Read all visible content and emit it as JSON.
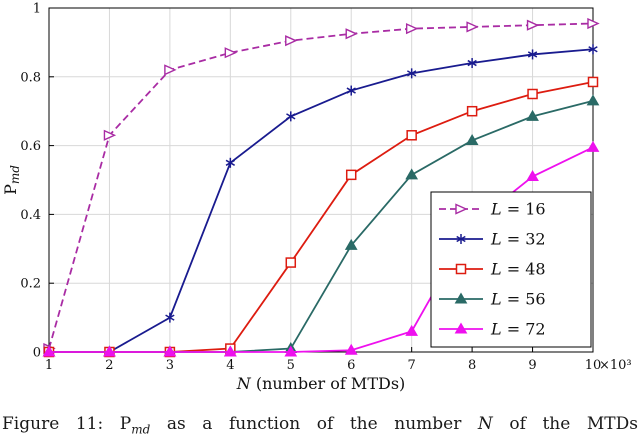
{
  "chart_data": {
    "type": "line",
    "title": "",
    "xlabel_var": "N",
    "xlabel_rest": " (number of MTDs)",
    "ylabel_main": "P",
    "ylabel_sub": "md",
    "x_multiplier": "×10³",
    "xlim": [
      1,
      10
    ],
    "ylim": [
      0,
      1
    ],
    "grid": true,
    "legend_position": "inside-bottom-right",
    "x": [
      1,
      2,
      3,
      4,
      5,
      6,
      7,
      8,
      9,
      10
    ],
    "x_ticks": [
      "1",
      "2",
      "3",
      "4",
      "5",
      "6",
      "7",
      "8",
      "9",
      "10"
    ],
    "y_tick_values": [
      0,
      0.2,
      0.4,
      0.6,
      0.8,
      1
    ],
    "y_ticks": [
      "0",
      "0.2",
      "0.4",
      "0.6",
      "0.8",
      "1"
    ],
    "series": [
      {
        "name": "L = 16",
        "color": "#a92ca4",
        "dash": "dashed",
        "marker": "triangle-right-open",
        "values": [
          0.01,
          0.63,
          0.82,
          0.87,
          0.905,
          0.925,
          0.94,
          0.945,
          0.95,
          0.955
        ]
      },
      {
        "name": "L = 32",
        "color": "#191b8f",
        "dash": "solid",
        "marker": "asterisk",
        "values": [
          0,
          0,
          0.1,
          0.55,
          0.685,
          0.76,
          0.81,
          0.84,
          0.865,
          0.88
        ]
      },
      {
        "name": "L = 48",
        "color": "#dd1c10",
        "dash": "solid",
        "marker": "square-open",
        "values": [
          0,
          0,
          0,
          0.01,
          0.26,
          0.515,
          0.63,
          0.7,
          0.75,
          0.785
        ]
      },
      {
        "name": "L = 56",
        "color": "#2a6a66",
        "dash": "solid",
        "marker": "triangle-filled",
        "values": [
          0,
          0,
          0,
          0,
          0.01,
          0.31,
          0.515,
          0.615,
          0.685,
          0.73
        ]
      },
      {
        "name": "L = 72",
        "color": "#ee10ee",
        "dash": "solid",
        "marker": "triangle-filled",
        "values": [
          0,
          0,
          0,
          0,
          0,
          0.005,
          0.06,
          0.37,
          0.51,
          0.595
        ]
      }
    ],
    "colors": {
      "grid": "#d8d8d8",
      "axis": "#000000",
      "background": "#ffffff"
    }
  },
  "caption": {
    "figure_label": "Figure 11:",
    "p_main": "P",
    "p_sub": "md",
    "text_mid": "as a function of the number",
    "n_var": "N",
    "text_end": "of the MTDs"
  }
}
